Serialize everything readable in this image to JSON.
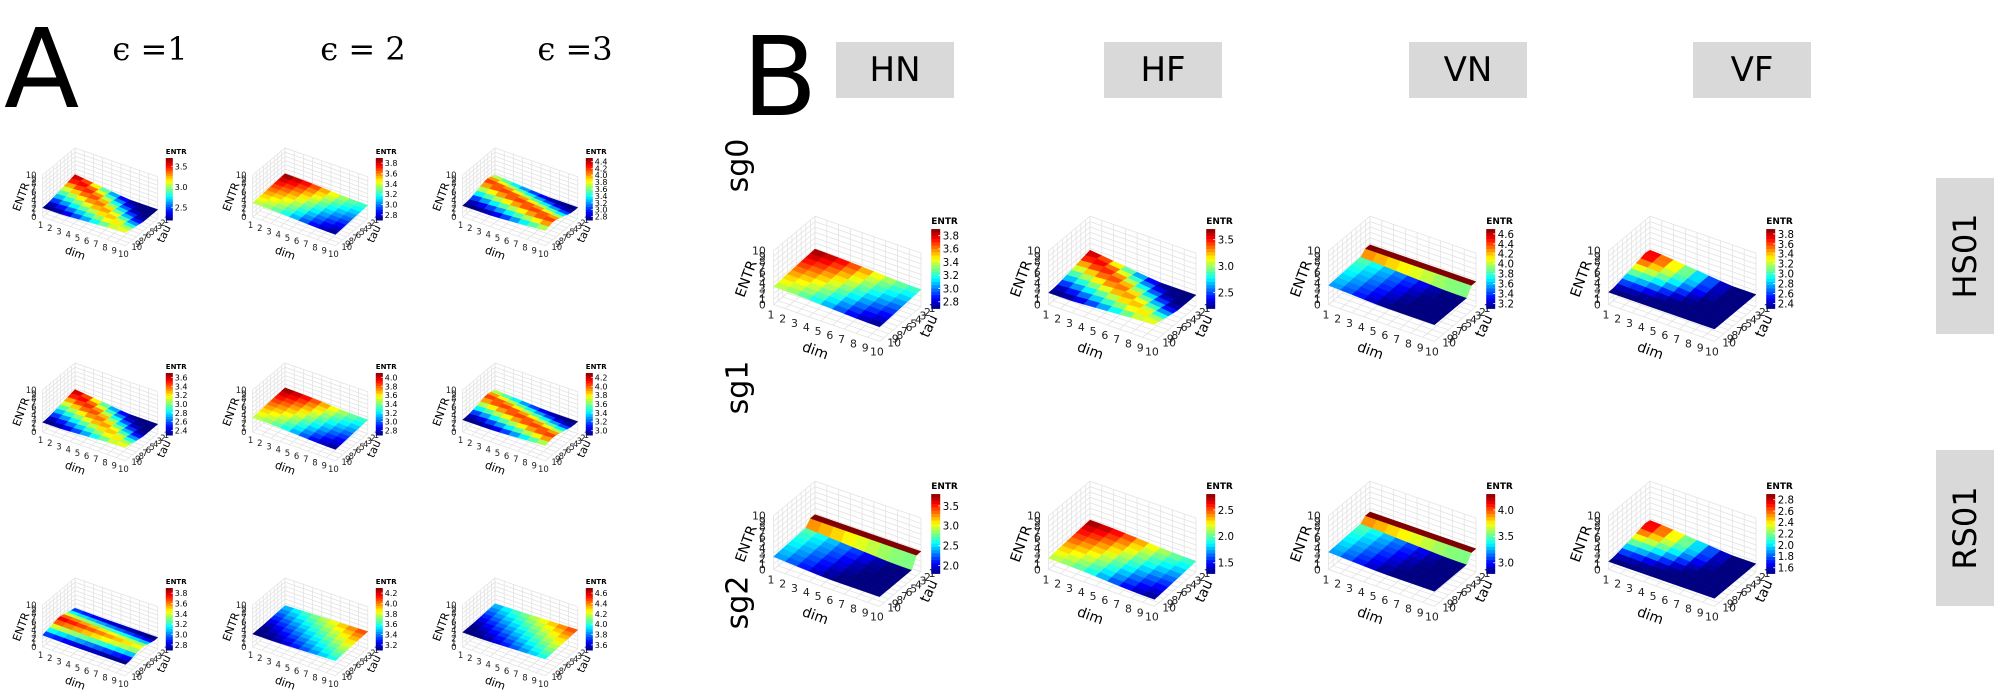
{
  "panel_a": {
    "letter": "A",
    "col_labels": [
      "ϵ =1",
      "ϵ = 2",
      "ϵ =3"
    ],
    "row_labels": [
      "sg0",
      "sg1",
      "sg2"
    ]
  },
  "panel_b": {
    "letter": "B",
    "col_labels": [
      "HN",
      "HF",
      "VN",
      "VF"
    ],
    "row_labels": [
      "HS01",
      "RS01"
    ]
  },
  "axes": {
    "xlabel": "dim",
    "ylabel": "tau",
    "zlabel": "ENTR",
    "legend_title": "ENTR",
    "xticks": [
      "1",
      "2",
      "3",
      "4",
      "5",
      "6",
      "7",
      "8",
      "9",
      "10"
    ],
    "yticks": [
      "1",
      "2",
      "3",
      "4",
      "5",
      "6",
      "7",
      "8",
      "9",
      "10"
    ],
    "zticks": [
      "0",
      "1",
      "2",
      "3",
      "4",
      "5",
      "6",
      "7",
      "8",
      "9",
      "10"
    ]
  },
  "chart_data": [
    {
      "type": "heatmap",
      "panel": "A",
      "row": "sg0",
      "col": "ϵ =1",
      "zlabel": "ENTR",
      "legend_ticks": [
        "2.5",
        "3.0",
        "3.5"
      ],
      "range": [
        2.2,
        3.7
      ],
      "shape": "diag_hi",
      "zlim": [
        0,
        10
      ]
    },
    {
      "type": "heatmap",
      "panel": "A",
      "row": "sg0",
      "col": "ϵ = 2",
      "zlabel": "ENTR",
      "legend_ticks": [
        "2.8",
        "3.0",
        "3.2",
        "3.4",
        "3.6",
        "3.8"
      ],
      "range": [
        2.7,
        3.9
      ],
      "shape": "front_hi",
      "zlim": [
        0,
        10
      ]
    },
    {
      "type": "heatmap",
      "panel": "A",
      "row": "sg0",
      "col": "ϵ =3",
      "zlabel": "ENTR",
      "legend_ticks": [
        "2.8",
        "3.0",
        "3.2",
        "3.4",
        "3.6",
        "3.8",
        "4.0",
        "4.2",
        "4.4"
      ],
      "range": [
        2.7,
        4.5
      ],
      "shape": "band",
      "zlim": [
        0,
        10
      ]
    },
    {
      "type": "heatmap",
      "panel": "A",
      "row": "sg1",
      "col": "ϵ =1",
      "zlabel": "ENTR",
      "legend_ticks": [
        "2.4",
        "2.6",
        "2.8",
        "3.0",
        "3.2",
        "3.4",
        "3.6"
      ],
      "range": [
        2.3,
        3.7
      ],
      "shape": "diag_hi",
      "zlim": [
        0,
        10
      ]
    },
    {
      "type": "heatmap",
      "panel": "A",
      "row": "sg1",
      "col": "ϵ = 2",
      "zlabel": "ENTR",
      "legend_ticks": [
        "2.8",
        "3.0",
        "3.2",
        "3.4",
        "3.6",
        "3.8",
        "4.0"
      ],
      "range": [
        2.7,
        4.1
      ],
      "shape": "front_hi",
      "zlim": [
        0,
        10
      ]
    },
    {
      "type": "heatmap",
      "panel": "A",
      "row": "sg1",
      "col": "ϵ =3",
      "zlabel": "ENTR",
      "legend_ticks": [
        "3.0",
        "3.2",
        "3.4",
        "3.6",
        "3.8",
        "4.0",
        "4.2"
      ],
      "range": [
        2.9,
        4.3
      ],
      "shape": "band",
      "zlim": [
        0,
        10
      ]
    },
    {
      "type": "heatmap",
      "panel": "A",
      "row": "sg2",
      "col": "ϵ =1",
      "zlabel": "ENTR",
      "legend_ticks": [
        "2.8",
        "3.0",
        "3.2",
        "3.4",
        "3.6",
        "3.8"
      ],
      "range": [
        2.7,
        3.9
      ],
      "shape": "mid_hi",
      "zlim": [
        0,
        10
      ]
    },
    {
      "type": "heatmap",
      "panel": "A",
      "row": "sg2",
      "col": "ϵ = 2",
      "zlabel": "ENTR",
      "legend_ticks": [
        "3.2",
        "3.4",
        "3.6",
        "3.8",
        "4.0",
        "4.2"
      ],
      "range": [
        3.1,
        4.3
      ],
      "shape": "back_hi",
      "zlim": [
        0,
        10
      ]
    },
    {
      "type": "heatmap",
      "panel": "A",
      "row": "sg2",
      "col": "ϵ =3",
      "zlabel": "ENTR",
      "legend_ticks": [
        "3.6",
        "3.8",
        "4.0",
        "4.2",
        "4.4",
        "4.6"
      ],
      "range": [
        3.5,
        4.7
      ],
      "shape": "back_hi",
      "zlim": [
        0,
        10
      ]
    },
    {
      "type": "heatmap",
      "panel": "B",
      "row": "HS01",
      "col": "HN",
      "zlabel": "ENTR",
      "legend_ticks": [
        "2.8",
        "3.0",
        "3.2",
        "3.4",
        "3.6",
        "3.8"
      ],
      "range": [
        2.7,
        3.9
      ],
      "shape": "front_hi",
      "zlim": [
        0,
        10
      ]
    },
    {
      "type": "heatmap",
      "panel": "B",
      "row": "HS01",
      "col": "HF",
      "zlabel": "ENTR",
      "legend_ticks": [
        "2.5",
        "3.0",
        "3.5"
      ],
      "range": [
        2.2,
        3.7
      ],
      "shape": "diag_hi",
      "zlim": [
        0,
        10
      ]
    },
    {
      "type": "heatmap",
      "panel": "B",
      "row": "HS01",
      "col": "VN",
      "zlabel": "ENTR",
      "legend_ticks": [
        "3.2",
        "3.4",
        "3.6",
        "3.8",
        "4.0",
        "4.2",
        "4.4",
        "4.6"
      ],
      "range": [
        3.1,
        4.7
      ],
      "shape": "edge_hi",
      "zlim": [
        0,
        10
      ]
    },
    {
      "type": "heatmap",
      "panel": "B",
      "row": "HS01",
      "col": "VF",
      "zlabel": "ENTR",
      "legend_ticks": [
        "2.4",
        "2.6",
        "2.8",
        "3.0",
        "3.2",
        "3.4",
        "3.6",
        "3.8"
      ],
      "range": [
        2.3,
        3.9
      ],
      "shape": "corner_hi",
      "zlim": [
        0,
        10
      ]
    },
    {
      "type": "heatmap",
      "panel": "B",
      "row": "RS01",
      "col": "HN",
      "zlabel": "ENTR",
      "legend_ticks": [
        "2.0",
        "2.5",
        "3.0",
        "3.5"
      ],
      "range": [
        1.8,
        3.8
      ],
      "shape": "edge_hi",
      "zlim": [
        0,
        10
      ]
    },
    {
      "type": "heatmap",
      "panel": "B",
      "row": "RS01",
      "col": "HF",
      "zlabel": "ENTR",
      "legend_ticks": [
        "1.5",
        "2.0",
        "2.5"
      ],
      "range": [
        1.3,
        2.8
      ],
      "shape": "front_hi",
      "zlim": [
        0,
        10
      ]
    },
    {
      "type": "heatmap",
      "panel": "B",
      "row": "RS01",
      "col": "VN",
      "zlabel": "ENTR",
      "legend_ticks": [
        "3.0",
        "3.5",
        "4.0"
      ],
      "range": [
        2.8,
        4.3
      ],
      "shape": "edge_hi",
      "zlim": [
        0,
        10
      ]
    },
    {
      "type": "heatmap",
      "panel": "B",
      "row": "RS01",
      "col": "VF",
      "zlabel": "ENTR",
      "legend_ticks": [
        "1.6",
        "1.8",
        "2.0",
        "2.2",
        "2.4",
        "2.6",
        "2.8"
      ],
      "range": [
        1.5,
        2.9
      ],
      "shape": "corner_hi",
      "zlim": [
        0,
        10
      ]
    }
  ]
}
